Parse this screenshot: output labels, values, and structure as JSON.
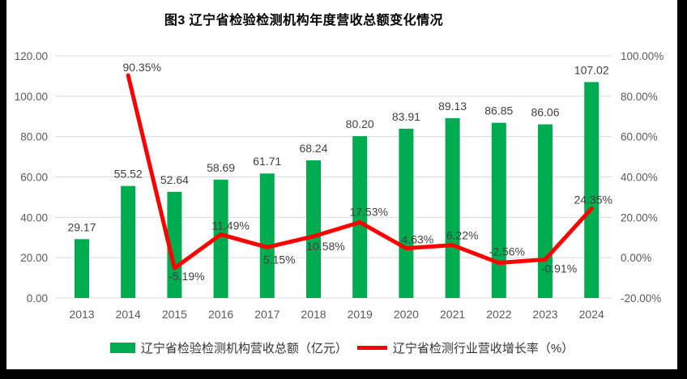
{
  "title": "图3 辽宁省检验检测机构年度营收总额变化情况",
  "colors": {
    "bar": "#00AC50",
    "line": "#FF0000",
    "gridline": "#D9D9D9",
    "axis_text": "#595959",
    "data_label_text": "#404040",
    "frame_border": "#000000",
    "canvas_background": "#ffffff"
  },
  "chart_data": {
    "type": "bar",
    "subtype": "combo-bar-line-dual-axis",
    "title": "图3 辽宁省检验检测机构年度营收总额变化情况",
    "categories": [
      "2013",
      "2014",
      "2015",
      "2016",
      "2017",
      "2018",
      "2019",
      "2020",
      "2021",
      "2022",
      "2023",
      "2024"
    ],
    "series": [
      {
        "name": "辽宁省检验检测机构营收总额（亿元）",
        "type": "bar",
        "axis": "left",
        "color": "#00AC50",
        "values": [
          29.17,
          55.52,
          52.64,
          58.69,
          61.71,
          68.24,
          80.2,
          83.91,
          89.13,
          86.85,
          86.06,
          107.02
        ],
        "labels": [
          "29.17",
          "55.52",
          "52.64",
          "58.69",
          "61.71",
          "68.24",
          "80.20",
          "83.91",
          "89.13",
          "86.85",
          "86.06",
          "107.02"
        ]
      },
      {
        "name": "辽宁省检测行业营收增长率（%）",
        "type": "line",
        "axis": "right",
        "color": "#FF0000",
        "values": [
          null,
          90.35,
          -5.19,
          11.49,
          5.15,
          10.58,
          17.53,
          4.63,
          6.22,
          -2.56,
          -0.91,
          24.35
        ],
        "labels": [
          null,
          "90.35%",
          "-5.19%",
          "11.49%",
          "5.15%",
          "10.58%",
          "17.53%",
          "4.63%",
          "6.22%",
          "-2.56%",
          "-0.91%",
          "24.35%"
        ]
      }
    ],
    "left_axis": {
      "min": 0,
      "max": 120,
      "step": 20,
      "ticks": [
        "0.00",
        "20.00",
        "40.00",
        "60.00",
        "80.00",
        "100.00",
        "120.00"
      ]
    },
    "right_axis": {
      "min": -20,
      "max": 100,
      "step": 20,
      "ticks": [
        "-20.00%",
        "0.00%",
        "20.00%",
        "40.00%",
        "60.00%",
        "80.00%",
        "100.00%"
      ]
    },
    "grid": "horizontal-only",
    "legend_position": "bottom"
  },
  "legend": [
    {
      "label": "辽宁省检验检测机构营收总额（亿元）",
      "swatch": "bar",
      "color": "#00AC50"
    },
    {
      "label": "辽宁省检测行业营收增长率（%）",
      "swatch": "line",
      "color": "#FF0000"
    }
  ]
}
